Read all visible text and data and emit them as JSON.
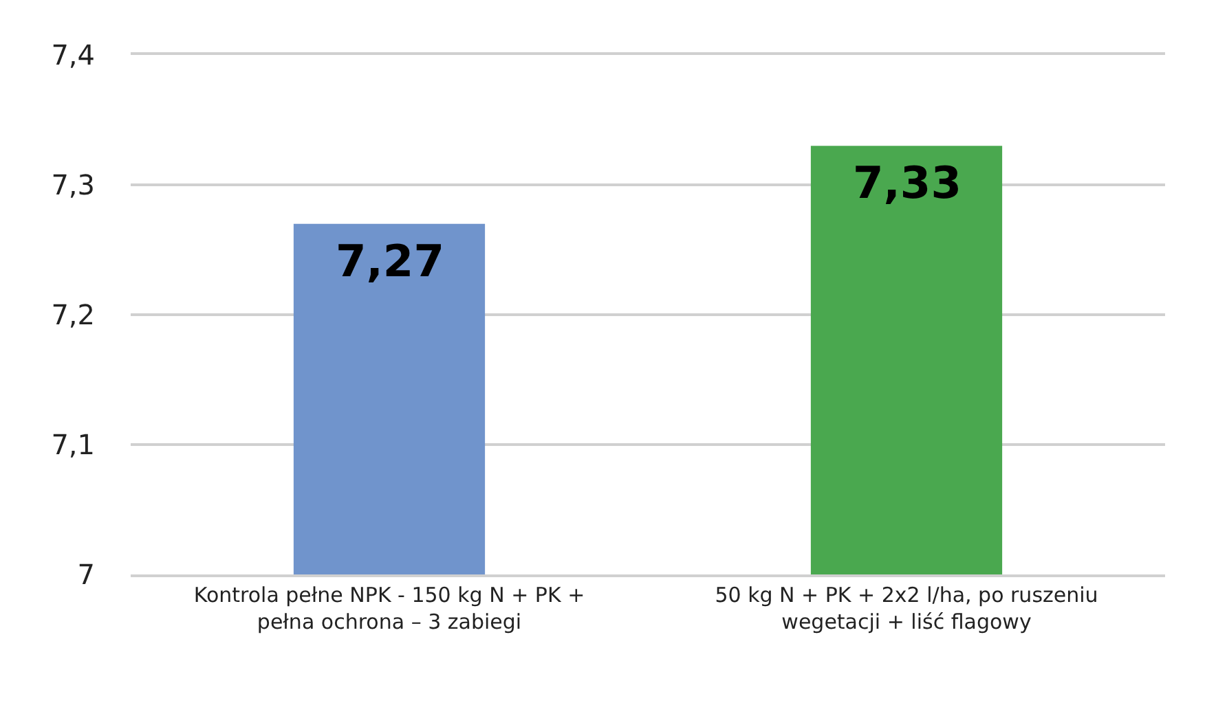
{
  "chart_data": {
    "type": "bar",
    "categories": [
      "Kontrola pełne NPK - 150 kg N + PK + pełna ochrona – 3 zabiegi",
      "50 kg N + PK + 2x2 l/ha, po ruszeniu wegetacji + liść flagowy"
    ],
    "values": [
      7.27,
      7.33
    ],
    "value_labels": [
      "7,27",
      "7,33"
    ],
    "colors": [
      "#7094cc",
      "#4aa84f"
    ],
    "ylim": [
      7,
      7.4
    ],
    "yticks": [
      {
        "value": 7,
        "label": "7"
      },
      {
        "value": 7.1,
        "label": "7,1"
      },
      {
        "value": 7.2,
        "label": "7,2"
      },
      {
        "value": 7.3,
        "label": "7,3"
      },
      {
        "value": 7.4,
        "label": "7,4"
      }
    ],
    "grid": "y"
  }
}
